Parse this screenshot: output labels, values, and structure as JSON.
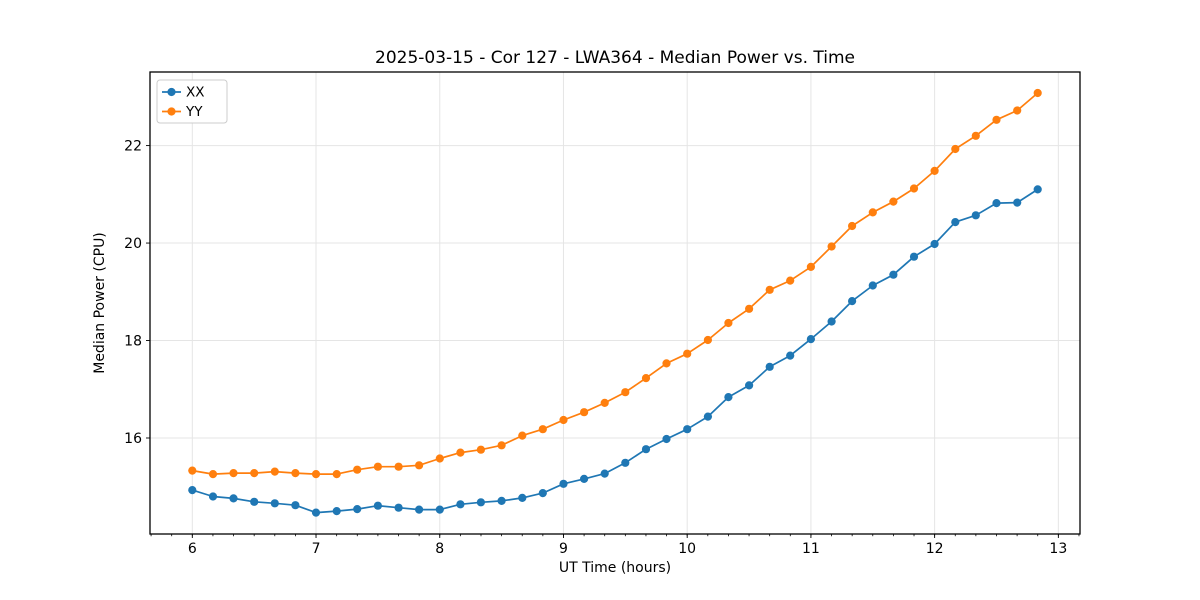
{
  "chart_data": {
    "type": "line",
    "title": "2025-03-15 - Cor 127 - LWA364 - Median Power vs. Time",
    "xlabel": "UT Time (hours)",
    "ylabel": "Median Power (CPU)",
    "xlim": [
      5.658,
      13.175
    ],
    "ylim": [
      14.03,
      23.51
    ],
    "xticks": [
      6,
      7,
      8,
      9,
      10,
      11,
      12,
      13
    ],
    "yticks": [
      16,
      18,
      20,
      22
    ],
    "x_minor_step": 0.166667,
    "grid": true,
    "legend_position": "upper left",
    "marker": "circle",
    "colors": {
      "grid": "#e5e5e5",
      "spine": "#000000",
      "legend_border": "#cccccc",
      "legend_bg": "#ffffff"
    },
    "x": [
      6.0,
      6.167,
      6.333,
      6.5,
      6.667,
      6.833,
      7.0,
      7.167,
      7.333,
      7.5,
      7.667,
      7.833,
      8.0,
      8.167,
      8.333,
      8.5,
      8.667,
      8.833,
      9.0,
      9.167,
      9.333,
      9.5,
      9.667,
      9.833,
      10.0,
      10.167,
      10.333,
      10.5,
      10.667,
      10.833,
      11.0,
      11.167,
      11.333,
      11.5,
      11.667,
      11.833,
      12.0,
      12.167,
      12.333,
      12.5,
      12.667,
      12.833
    ],
    "series": [
      {
        "name": "XX",
        "color": "#1f77b4",
        "values": [
          14.93,
          14.8,
          14.76,
          14.69,
          14.66,
          14.62,
          14.47,
          14.5,
          14.54,
          14.61,
          14.57,
          14.53,
          14.53,
          14.64,
          14.68,
          14.71,
          14.77,
          14.87,
          15.06,
          15.16,
          15.27,
          15.49,
          15.77,
          15.98,
          16.18,
          16.44,
          16.84,
          17.08,
          17.46,
          17.69,
          18.03,
          18.39,
          18.81,
          19.13,
          19.35,
          19.72,
          19.98,
          20.43,
          20.57,
          20.82,
          20.83,
          21.1
        ]
      },
      {
        "name": "YY",
        "color": "#ff7f0e",
        "values": [
          15.33,
          15.26,
          15.28,
          15.28,
          15.31,
          15.28,
          15.26,
          15.26,
          15.35,
          15.41,
          15.41,
          15.44,
          15.58,
          15.7,
          15.76,
          15.85,
          16.05,
          16.18,
          16.37,
          16.53,
          16.72,
          16.94,
          17.23,
          17.53,
          17.73,
          18.01,
          18.36,
          18.65,
          19.04,
          19.23,
          19.51,
          19.93,
          20.35,
          20.63,
          20.85,
          21.12,
          21.48,
          21.93,
          22.2,
          22.53,
          22.72,
          23.08
        ]
      }
    ]
  }
}
